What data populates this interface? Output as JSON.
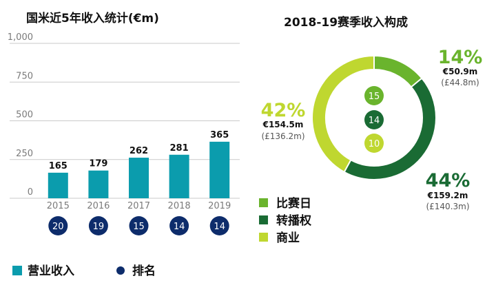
{
  "colors": {
    "revenue_bar": "#0b9cad",
    "rank_circle": "#0d2c6b",
    "matchday": "#6ab42d",
    "broadcasting": "#1a6b34",
    "commercial": "#bfd730",
    "axis_text": "#7a7a7a",
    "grid": "#c9c9c9"
  },
  "legend": {
    "revenue_label": "营业收入",
    "rank_label": "排名",
    "matchday_label": "比赛日",
    "broadcasting_label": "转播权",
    "commercial_label": "商业"
  },
  "chart_data": [
    {
      "type": "bar",
      "title": "国米近5年收入统计(€m)",
      "categories": [
        "2015",
        "2016",
        "2017",
        "2018",
        "2019"
      ],
      "series": [
        {
          "name": "营业收入",
          "values": [
            165,
            179,
            262,
            281,
            365
          ]
        }
      ],
      "data_labels": [
        "165",
        "179",
        "262",
        "281",
        "365"
      ],
      "ranks": [
        "20",
        "19",
        "15",
        "14",
        "14"
      ],
      "y_ticks": [
        0,
        250,
        500,
        750,
        1000
      ],
      "y_tick_labels": [
        "0",
        "250",
        "500",
        "750",
        "1,000"
      ],
      "ylim": [
        0,
        1000
      ],
      "grid": true
    },
    {
      "type": "pie",
      "style": "donut",
      "title": "2018-19赛季收入构成",
      "slices": [
        {
          "name": "比赛日",
          "value": 14,
          "pct_label": "14%",
          "eur_label": "€50.9m",
          "gbp_label": "(£44.8m)",
          "rank": "15"
        },
        {
          "name": "转播权",
          "value": 44,
          "pct_label": "44%",
          "eur_label": "€159.2m",
          "gbp_label": "(£140.3m)",
          "rank": "14"
        },
        {
          "name": "商业",
          "value": 42,
          "pct_label": "42%",
          "eur_label": "€154.5m",
          "gbp_label": "(£136.2m)",
          "rank": "10"
        }
      ],
      "legend_position": "bottom-left"
    }
  ]
}
